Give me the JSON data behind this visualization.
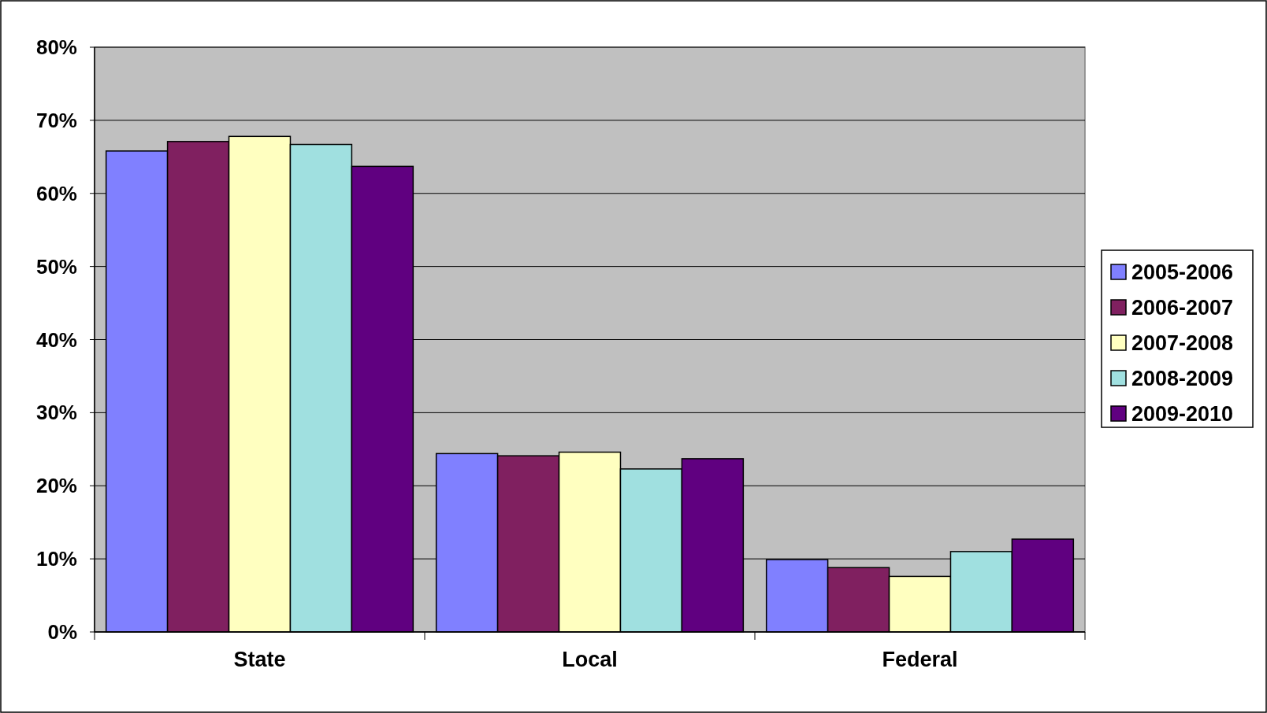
{
  "chart_data": {
    "type": "bar",
    "categories": [
      "State",
      "Local",
      "Federal"
    ],
    "series": [
      {
        "name": "2005-2006",
        "color": "#8080ff",
        "values": [
          65.8,
          24.4,
          9.9
        ]
      },
      {
        "name": "2006-2007",
        "color": "#802060",
        "values": [
          67.1,
          24.1,
          8.8
        ]
      },
      {
        "name": "2007-2008",
        "color": "#ffffc0",
        "values": [
          67.8,
          24.6,
          7.6
        ]
      },
      {
        "name": "2008-2009",
        "color": "#a0e0e0",
        "values": [
          66.7,
          22.3,
          11.0
        ]
      },
      {
        "name": "2009-2010",
        "color": "#600080",
        "values": [
          63.7,
          23.7,
          12.7
        ]
      }
    ],
    "ylim": [
      0,
      80
    ],
    "yticks": [
      {
        "value": 0,
        "label": "0%"
      },
      {
        "value": 10,
        "label": "10%"
      },
      {
        "value": 20,
        "label": "20%"
      },
      {
        "value": 30,
        "label": "30%"
      },
      {
        "value": 40,
        "label": "40%"
      },
      {
        "value": 50,
        "label": "50%"
      },
      {
        "value": 60,
        "label": "60%"
      },
      {
        "value": 70,
        "label": "70%"
      },
      {
        "value": 80,
        "label": "80%"
      }
    ],
    "grid": "y",
    "legend": "right"
  }
}
